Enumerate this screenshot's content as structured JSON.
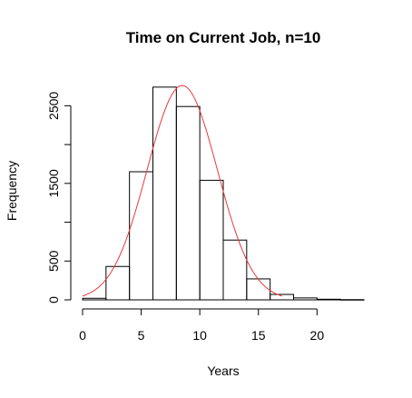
{
  "chart_data": {
    "type": "bar",
    "title": "Time on Current Job, n=10",
    "xlabel": "Years",
    "ylabel": "Frequency",
    "bin_edges": [
      0,
      2,
      4,
      6,
      8,
      10,
      12,
      14,
      16,
      18,
      20,
      22,
      24
    ],
    "values": [
      20,
      430,
      1650,
      2740,
      2490,
      1540,
      770,
      270,
      70,
      25,
      8,
      3
    ],
    "x_ticks": [
      0,
      5,
      10,
      15,
      20
    ],
    "y_ticks": [
      0,
      500,
      1500,
      2500
    ],
    "xlim": [
      0,
      24
    ],
    "ylim": [
      0,
      2750
    ],
    "grid": false,
    "overlay_curve": {
      "type": "normal_density_scaled",
      "mean": 8.5,
      "sd": 3.0,
      "peak": 2760,
      "x_range": [
        0,
        17
      ],
      "color": "#e8383d"
    }
  }
}
